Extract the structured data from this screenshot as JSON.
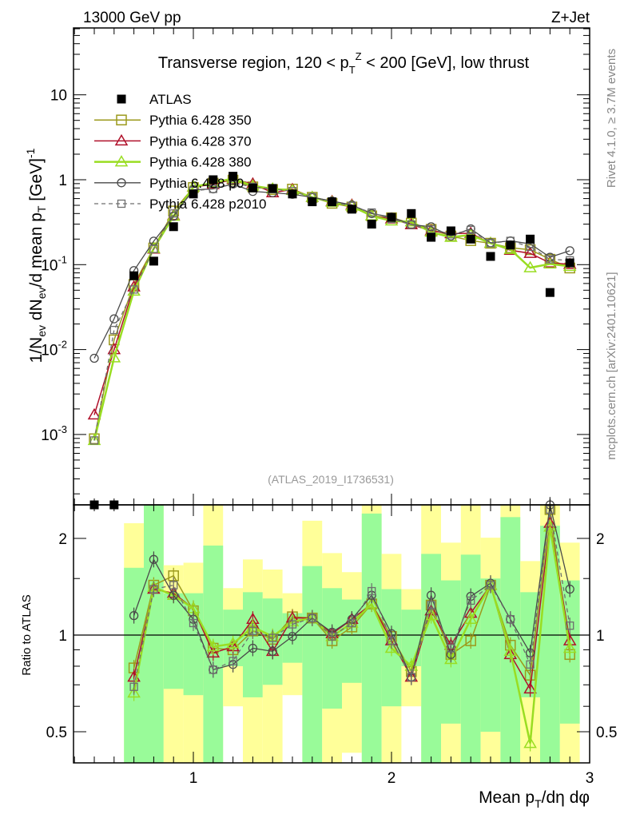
{
  "header": {
    "energy": "13000 GeV pp",
    "process": "Z+Jet"
  },
  "side_texts": {
    "rivet": "Rivet 4.1.0, ≥ 3.7M events",
    "mcplots": "mcplots.cern.ch [arXiv:2401.10621]"
  },
  "chart_data": {
    "type": "line",
    "title_parts": [
      "Transverse region, 120 < p",
      "T",
      "Z",
      " < 200 [GeV], low thrust"
    ],
    "analysis_id": "(ATLAS_2019_I1736531)",
    "ylabel_parts": [
      "1/N",
      "ev",
      " dN",
      "ev",
      "/d mean p",
      "T",
      " [GeV]",
      "-1"
    ],
    "xlabel_parts": [
      "Mean p",
      "T",
      "/dη dφ"
    ],
    "ratio_ylabel": "Ratio to ATLAS",
    "xlim": [
      0.4,
      3.0
    ],
    "ylim": [
      0.000145,
      60
    ],
    "ratio_ylim": [
      0.4,
      2.54
    ],
    "yscale": "log",
    "x_ticks": [
      {
        "v": 1,
        "label": "1"
      },
      {
        "v": 2,
        "label": "2"
      },
      {
        "v": 3,
        "label": "3"
      }
    ],
    "y_ticks": [
      {
        "v": 0.001,
        "base": "10",
        "exp": "-3"
      },
      {
        "v": 0.01,
        "base": "10",
        "exp": "-2"
      },
      {
        "v": 0.1,
        "base": "10",
        "exp": "-1"
      },
      {
        "v": 1,
        "base": "1",
        "exp": ""
      },
      {
        "v": 10,
        "base": "10",
        "exp": ""
      }
    ],
    "ratio_ticks": [
      {
        "v": 0.5,
        "label": "0.5"
      },
      {
        "v": 1,
        "label": "1"
      },
      {
        "v": 2,
        "label": "2"
      }
    ],
    "legend_placement": "top-left",
    "x": [
      0.5,
      0.6,
      0.7,
      0.8,
      0.9,
      1.0,
      1.1,
      1.2,
      1.3,
      1.4,
      1.5,
      1.6,
      1.7,
      1.8,
      1.9,
      2.0,
      2.1,
      2.2,
      2.3,
      2.4,
      2.5,
      2.6,
      2.7,
      2.8,
      2.9
    ],
    "data": {
      "name": "ATLAS",
      "color": "#000000",
      "values": [
        0.0001,
        0.0001,
        0.074,
        0.11,
        0.28,
        0.68,
        1.0,
        1.1,
        0.8,
        0.79,
        0.68,
        0.55,
        0.55,
        0.45,
        0.3,
        0.36,
        0.4,
        0.21,
        0.25,
        0.2,
        0.125,
        0.17,
        0.2,
        0.047,
        0.105
      ]
    },
    "series": [
      {
        "name": "Pythia 6.428 350",
        "color": "#9c9a1c",
        "marker": "square",
        "dash": false,
        "width": 1.5,
        "low_values": [
          0.00089,
          0.013
        ],
        "ratio": [
          0.79,
          1.43,
          1.53,
          1.19,
          0.91,
          0.9,
          1.03,
          0.97,
          1.14,
          1.13,
          0.96,
          1.06,
          1.25,
          0.99,
          0.77,
          1.24,
          0.87,
          0.96,
          1.43,
          0.93,
          0.75,
          2.46,
          0.87
        ]
      },
      {
        "name": "Pythia 6.428 370",
        "color": "#b0102a",
        "marker": "triangle",
        "dash": false,
        "width": 1.5,
        "low_values": [
          0.0017,
          0.01
        ],
        "ratio": [
          0.74,
          1.39,
          1.35,
          1.21,
          0.88,
          0.92,
          1.12,
          0.89,
          1.13,
          1.13,
          1.01,
          1.12,
          1.25,
          0.96,
          0.74,
          1.19,
          0.93,
          1.17,
          1.43,
          0.87,
          0.68,
          2.23,
          0.96
        ]
      },
      {
        "name": "Pythia 6.428 380",
        "color": "#99dd22",
        "marker": "triangle",
        "dash": false,
        "width": 2.5,
        "low_values": [
          0.00085,
          0.008
        ],
        "ratio": [
          0.66,
          1.41,
          1.33,
          1.21,
          0.92,
          0.94,
          1.06,
          0.99,
          1.1,
          1.13,
          0.99,
          1.09,
          1.25,
          0.91,
          0.8,
          1.15,
          0.84,
          1.12,
          1.43,
          0.89,
          0.46,
          2.17,
          0.91
        ]
      },
      {
        "name": "Pythia 6.428 p0",
        "color": "#4a4a4a",
        "marker": "circle",
        "dash": false,
        "width": 1.3,
        "low_values": [
          0.0079,
          0.023
        ],
        "ratio": [
          1.15,
          1.72,
          1.33,
          1.12,
          0.78,
          0.81,
          0.91,
          0.89,
          0.99,
          1.13,
          1.02,
          1.12,
          1.33,
          1.01,
          0.74,
          1.33,
          0.87,
          1.32,
          1.45,
          1.12,
          0.88,
          2.6,
          1.39
        ]
      },
      {
        "name": "Pythia 6.428 p2010",
        "color": "#6e6e6e",
        "marker": "smallsquare",
        "dash": true,
        "width": 1.3,
        "low_values": [
          0.00085,
          0.017
        ],
        "ratio": [
          0.69,
          1.39,
          1.43,
          1.09,
          0.78,
          0.83,
          1.03,
          0.98,
          1.08,
          1.13,
          0.99,
          1.09,
          1.37,
          0.96,
          0.74,
          1.24,
          0.91,
          1.28,
          1.43,
          1.12,
          0.81,
          2.46,
          1.07
        ]
      }
    ],
    "band_colors": {
      "outer": "#ffff99",
      "inner": "#99fb99"
    },
    "bands": [
      {
        "x": 0.7,
        "outer": [
          0.3,
          2.23
        ],
        "inner": [
          0.3,
          1.62
        ]
      },
      {
        "x": 0.8,
        "outer": [
          0.3,
          3
        ],
        "inner": [
          0.3,
          3
        ]
      },
      {
        "x": 0.9,
        "outer": [
          0.3,
          1.65
        ],
        "inner": [
          0.68,
          1.35
        ]
      },
      {
        "x": 1.0,
        "outer": [
          0.3,
          1.68
        ],
        "inner": [
          0.65,
          1.35
        ]
      },
      {
        "x": 1.1,
        "outer": [
          0.3,
          3
        ],
        "inner": [
          0.3,
          1.9
        ]
      },
      {
        "x": 1.2,
        "outer": [
          0.6,
          1.4
        ],
        "inner": [
          0.8,
          1.2
        ]
      },
      {
        "x": 1.3,
        "outer": [
          0.3,
          1.72
        ],
        "inner": [
          0.64,
          1.36
        ]
      },
      {
        "x": 1.4,
        "outer": [
          0.3,
          1.6
        ],
        "inner": [
          0.7,
          1.3
        ]
      },
      {
        "x": 1.5,
        "outer": [
          0.65,
          1.35
        ],
        "inner": [
          0.82,
          1.17
        ]
      },
      {
        "x": 1.6,
        "outer": [
          0.3,
          2.27
        ],
        "inner": [
          0.3,
          1.64
        ]
      },
      {
        "x": 1.7,
        "outer": [
          0.3,
          1.8
        ],
        "inner": [
          0.59,
          1.4
        ]
      },
      {
        "x": 1.8,
        "outer": [
          0.43,
          1.57
        ],
        "inner": [
          0.71,
          1.29
        ]
      },
      {
        "x": 1.9,
        "outer": [
          0.3,
          3
        ],
        "inner": [
          0.3,
          2.39
        ]
      },
      {
        "x": 2.0,
        "outer": [
          0.3,
          1.79
        ],
        "inner": [
          0.6,
          1.39
        ]
      },
      {
        "x": 2.1,
        "outer": [
          0.6,
          1.39
        ],
        "inner": [
          0.8,
          1.2
        ]
      },
      {
        "x": 2.2,
        "outer": [
          0.3,
          3
        ],
        "inner": [
          0.3,
          1.79
        ]
      },
      {
        "x": 2.3,
        "outer": [
          0.3,
          1.94
        ],
        "inner": [
          0.53,
          1.48
        ]
      },
      {
        "x": 2.4,
        "outer": [
          0.3,
          3
        ],
        "inner": [
          0.3,
          1.78
        ]
      },
      {
        "x": 2.5,
        "outer": [
          0.3,
          2.01
        ],
        "inner": [
          0.5,
          1.5
        ]
      },
      {
        "x": 2.6,
        "outer": [
          0.3,
          3
        ],
        "inner": [
          0.3,
          2.33
        ]
      },
      {
        "x": 2.7,
        "outer": [
          0.3,
          1.7
        ],
        "inner": [
          0.64,
          1.36
        ]
      },
      {
        "x": 2.8,
        "outer": [
          0.3,
          3
        ],
        "inner": [
          0.3,
          2.19
        ]
      },
      {
        "x": 2.9,
        "outer": [
          0.3,
          1.94
        ],
        "inner": [
          0.53,
          1.48
        ]
      }
    ]
  }
}
